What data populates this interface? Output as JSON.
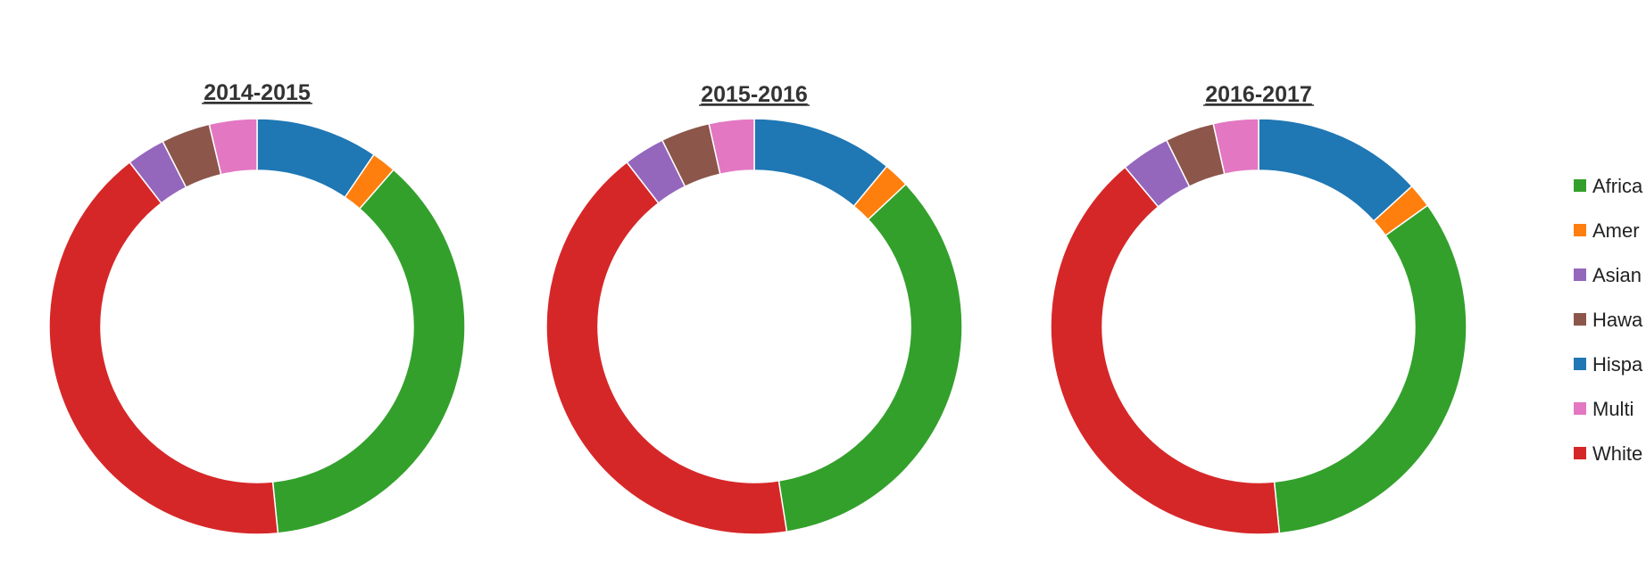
{
  "chart_data": {
    "type": "pie",
    "variant": "donut",
    "categories": [
      "Africa",
      "Amer",
      "Asian",
      "Hawa",
      "Hispa",
      "Multi",
      "White"
    ],
    "colors": [
      "#33a02c",
      "#ff7f0e",
      "#9467bd",
      "#8c564b",
      "#1f77b4",
      "#e377c2",
      "#d62728"
    ],
    "charts": [
      {
        "title": "2014-2015",
        "values": [
          37.0,
          1.9,
          3.0,
          3.8,
          9.5,
          3.7,
          41.1
        ]
      },
      {
        "title": "2015-2016",
        "values": [
          34.5,
          2.0,
          3.2,
          3.8,
          11.0,
          3.5,
          42.0
        ]
      },
      {
        "title": "2016-2017",
        "values": [
          33.3,
          1.9,
          3.8,
          3.8,
          13.2,
          3.5,
          40.5
        ]
      }
    ],
    "legend": {
      "position": "right",
      "items": [
        "Africa",
        "Amer",
        "Asian",
        "Hawa",
        "Hispa",
        "Multi",
        "White"
      ]
    }
  }
}
